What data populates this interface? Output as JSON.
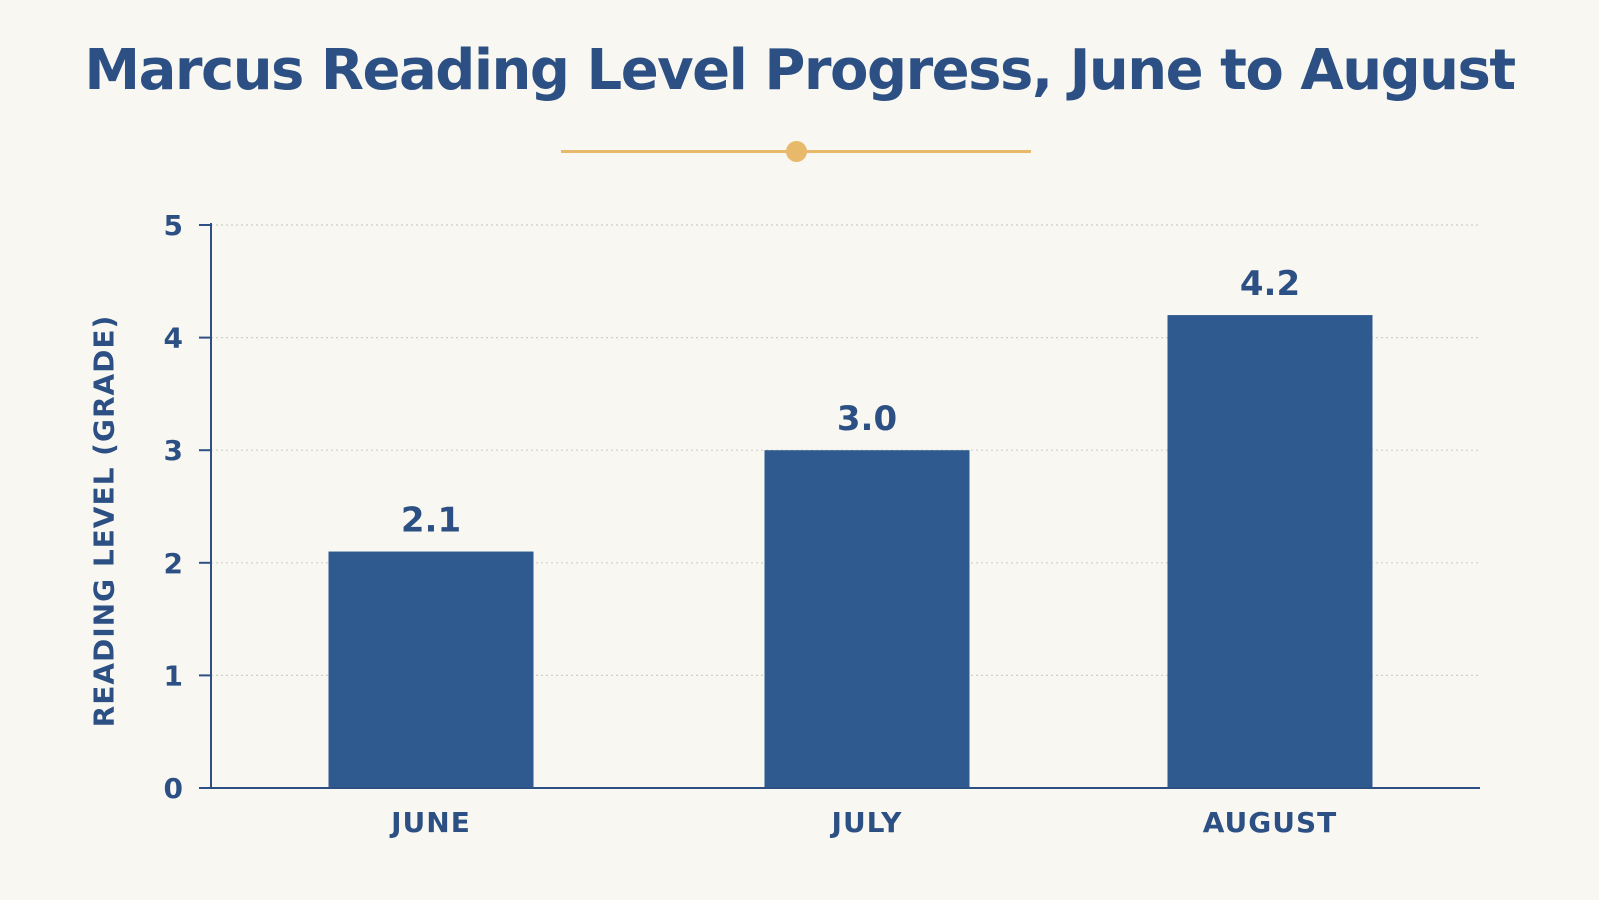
{
  "chart_data": {
    "type": "bar",
    "title": "Marcus Reading Level Progress, June to August",
    "xlabel": "",
    "ylabel": "READING LEVEL (GRADE)",
    "categories": [
      "JUNE",
      "JULY",
      "AUGUST"
    ],
    "values": [
      2.1,
      3.0,
      4.2
    ],
    "value_labels": [
      "2.1",
      "3.0",
      "4.2"
    ],
    "ylim": [
      0,
      5
    ],
    "yticks": [
      0,
      1,
      2,
      3,
      4,
      5
    ],
    "grid": true,
    "legend": "none"
  },
  "colors": {
    "bar": "#2e5a8f",
    "text": "#2c5083",
    "accent": "#e8b96a",
    "background": "#f9f7f2",
    "grid": "#cfcfc9",
    "axis": "#2c5083"
  }
}
